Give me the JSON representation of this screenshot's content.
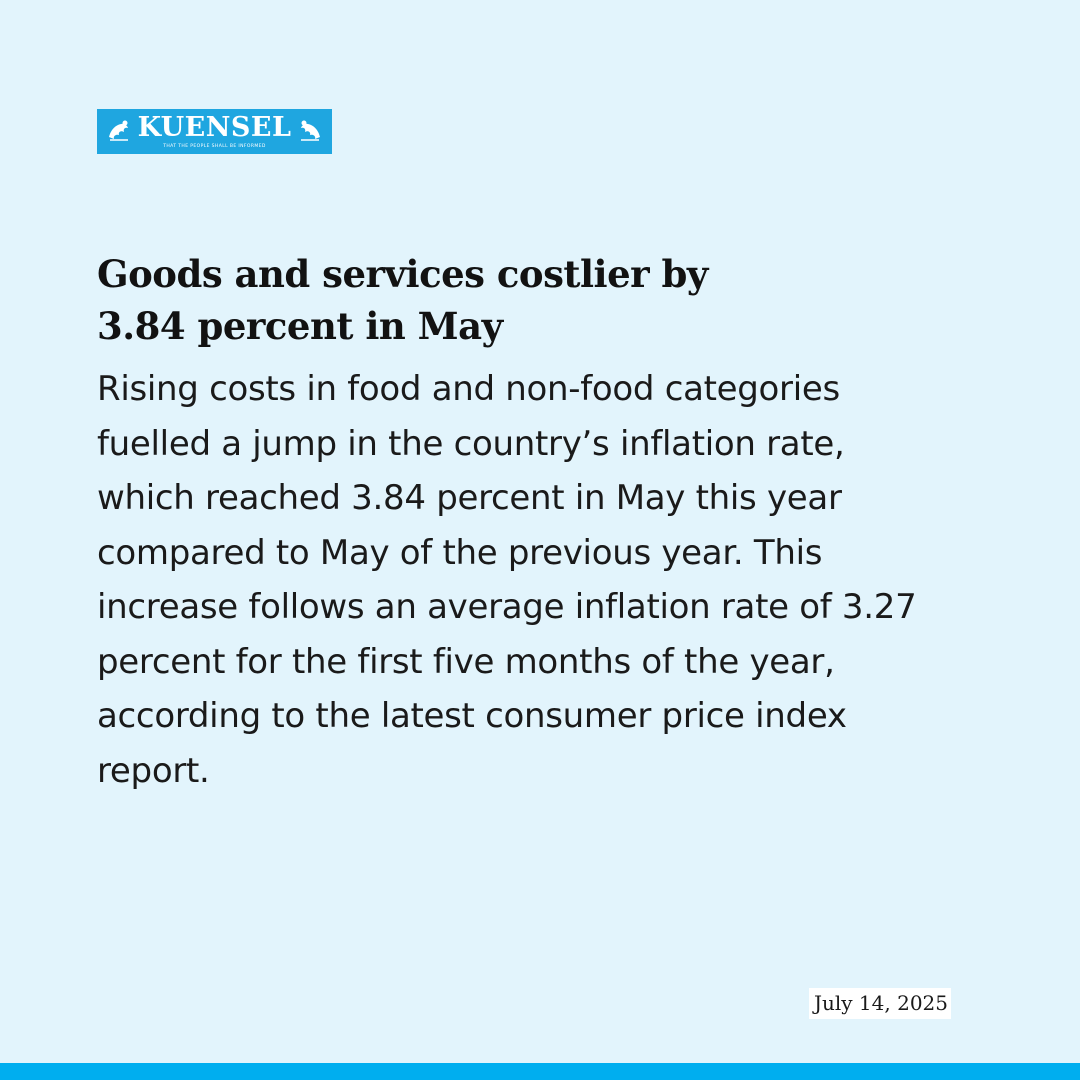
{
  "brand": {
    "name": "KUENSEL",
    "tagline": "THAT THE PEOPLE SHALL BE INFORMED"
  },
  "article": {
    "headline_line1": "Goods and services costlier by",
    "headline_line2": "3.84 percent in May",
    "body": "Rising costs in food and non-food categories fuelled a jump in the country’s inflation rate, which reached 3.84 percent in May this year compared to May of the previous year. This increase follows an average inflation rate of 3.27 percent for the first five months of the year, according to the latest consumer price index report.",
    "date": "July 14, 2025"
  },
  "colors": {
    "background": "#e2f4fc",
    "brand_blue": "#1fa6e0",
    "accent_bar": "#00aeef",
    "text": "#121212"
  },
  "icons": {
    "logo_ornament": "snow-lion-ornament"
  }
}
